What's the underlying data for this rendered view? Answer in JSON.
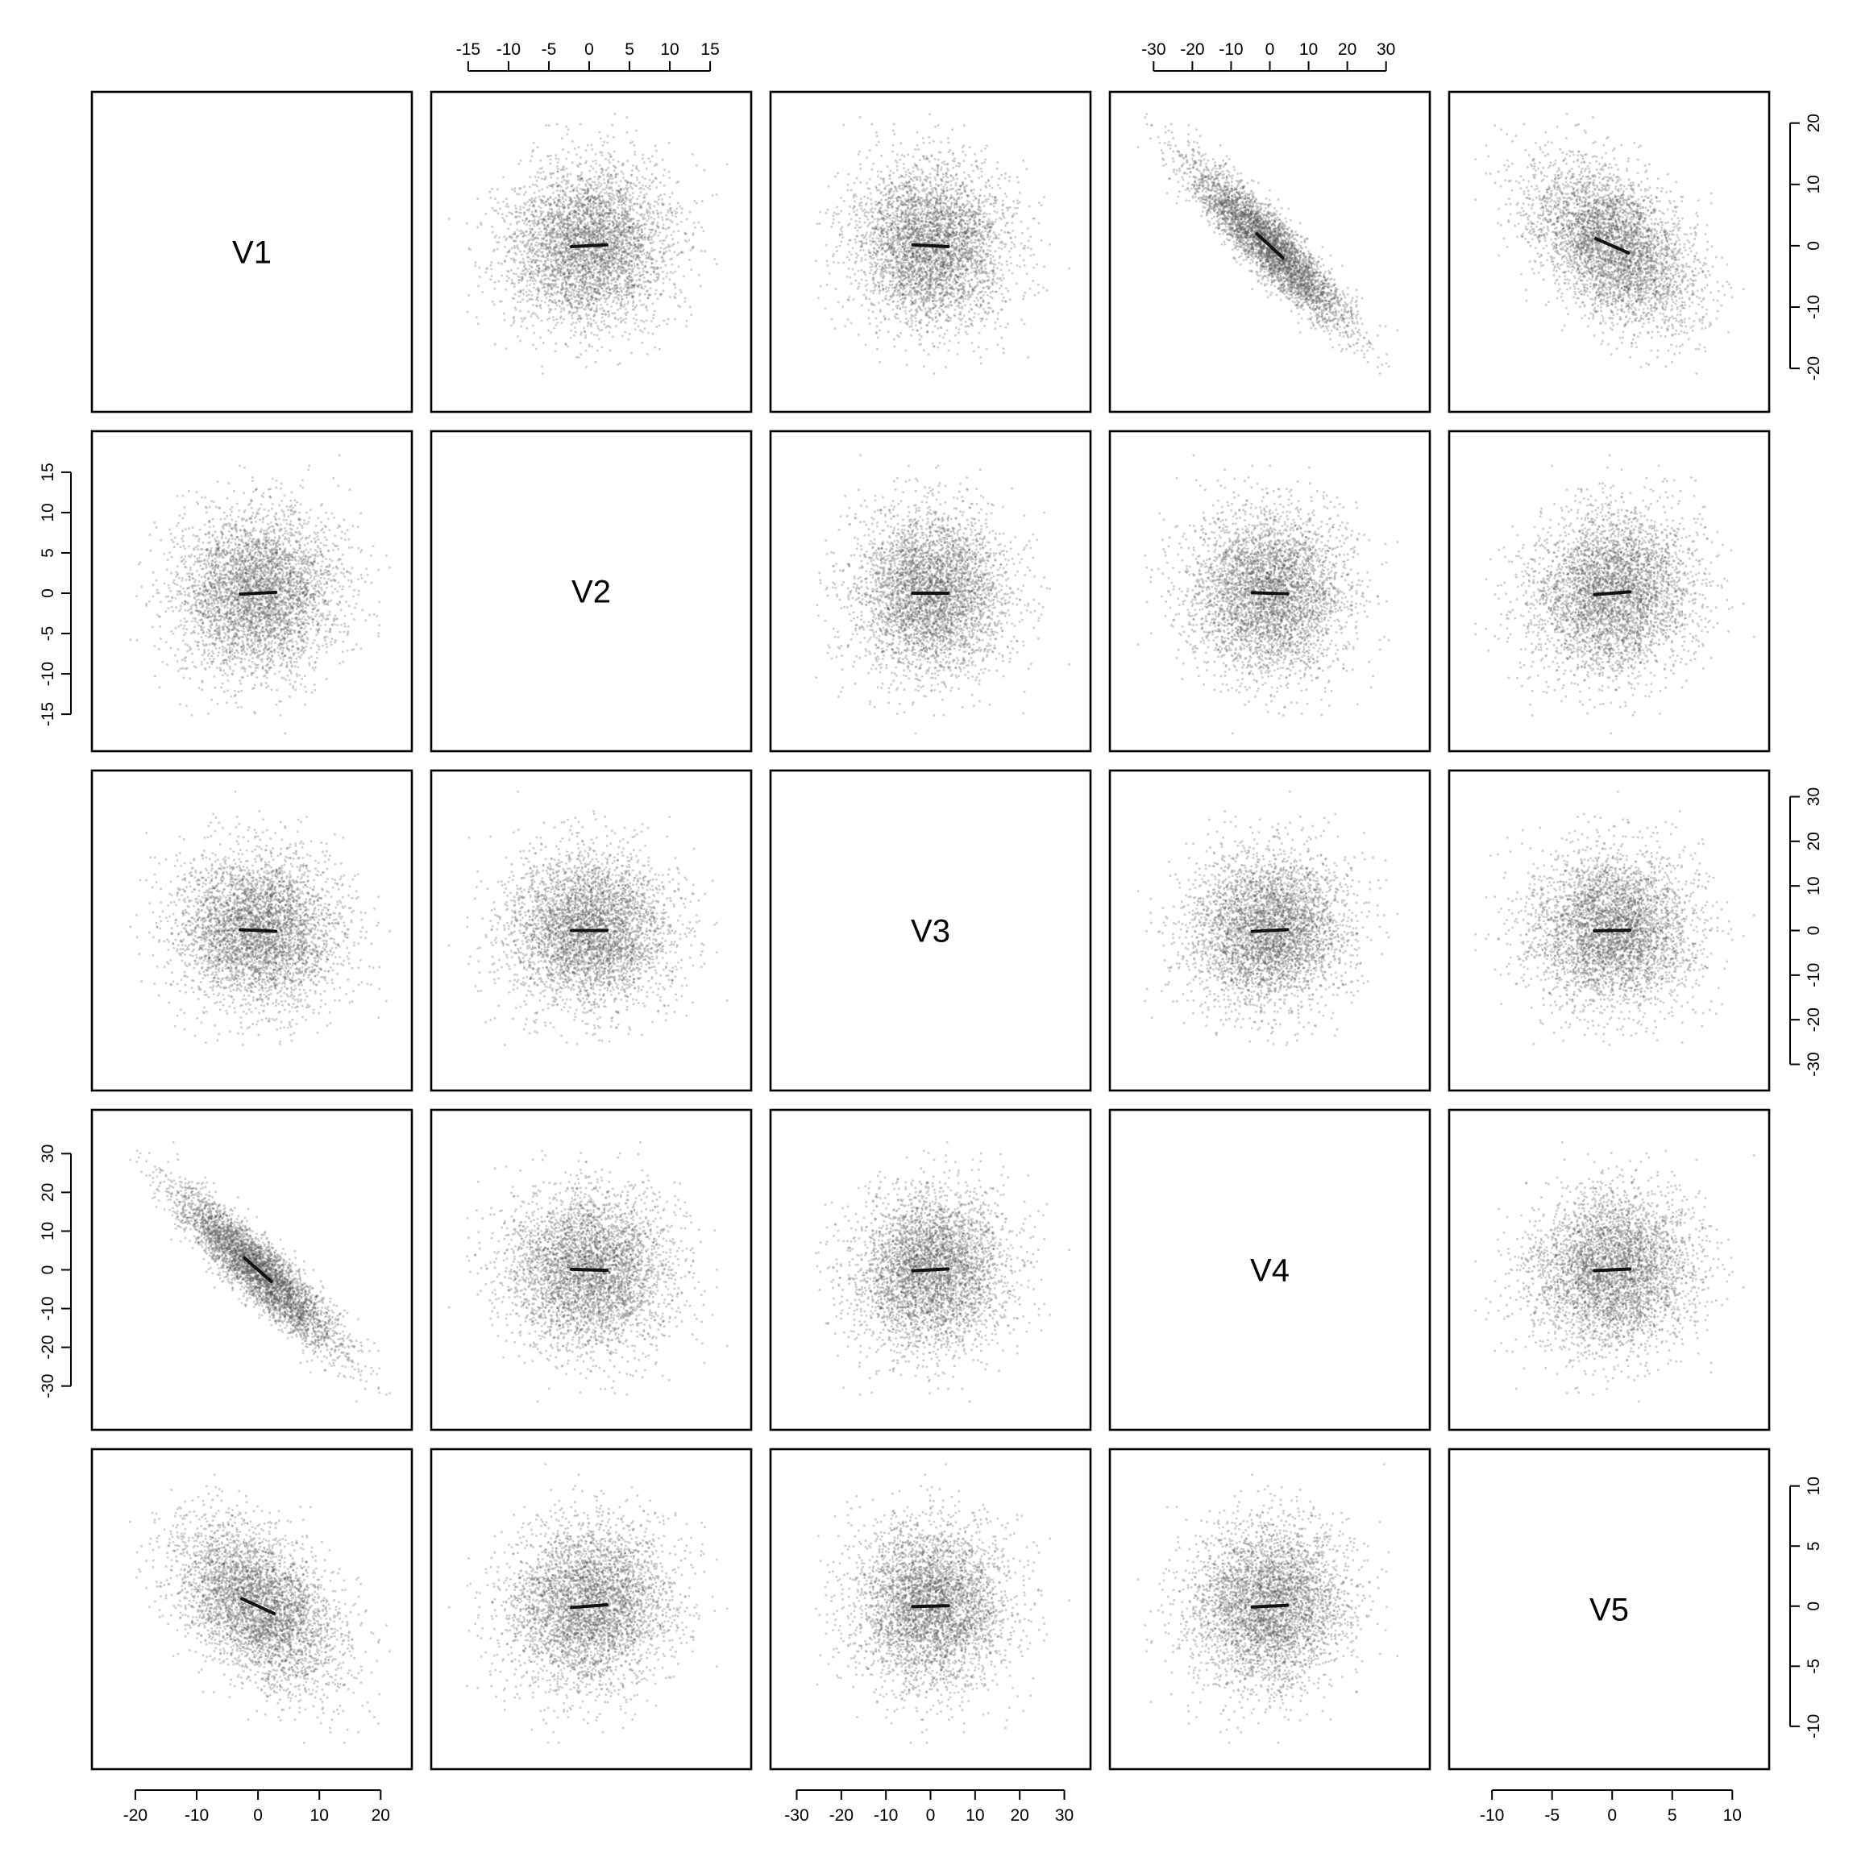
{
  "chart_data": {
    "type": "scatter",
    "layout": "scatterplot-matrix",
    "variables": [
      "V1",
      "V2",
      "V3",
      "V4",
      "V5"
    ],
    "ranges": {
      "V1": [
        -25,
        23
      ],
      "V2": [
        -18,
        18.5
      ],
      "V3": [
        -33,
        33
      ],
      "V4": [
        -38,
        38
      ],
      "V5": [
        -12.5,
        12
      ]
    },
    "ticks": {
      "V1": [
        -20,
        -10,
        0,
        10,
        20
      ],
      "V2": [
        -15,
        -10,
        -5,
        0,
        5,
        10,
        15
      ],
      "V3": [
        -30,
        -20,
        -10,
        0,
        10,
        20,
        30
      ],
      "V4": [
        -30,
        -20,
        -10,
        0,
        10,
        20,
        30
      ],
      "V5": [
        -10,
        -5,
        0,
        5,
        10
      ]
    },
    "axis_placement": {
      "bottom": [
        "V1",
        "V3",
        "V5"
      ],
      "top": [
        "V2",
        "V4"
      ],
      "left": [
        "V2",
        "V4"
      ],
      "right": [
        "V1",
        "V3",
        "V5"
      ]
    },
    "std_dev": {
      "V1": 6.5,
      "V2": 5.0,
      "V3": 8.5,
      "V4": 10.0,
      "V5": 3.4
    },
    "correlations": {
      "V1-V2": 0.05,
      "V1-V3": -0.05,
      "V1-V4": -0.9,
      "V1-V5": -0.45,
      "V2-V3": 0.0,
      "V2-V4": -0.03,
      "V2-V5": 0.08,
      "V3-V4": 0.05,
      "V3-V5": 0.02,
      "V4-V5": 0.05
    },
    "points_per_panel": 4000,
    "grid": false,
    "point_color": "#555555",
    "fit_line_color": "#111111"
  }
}
